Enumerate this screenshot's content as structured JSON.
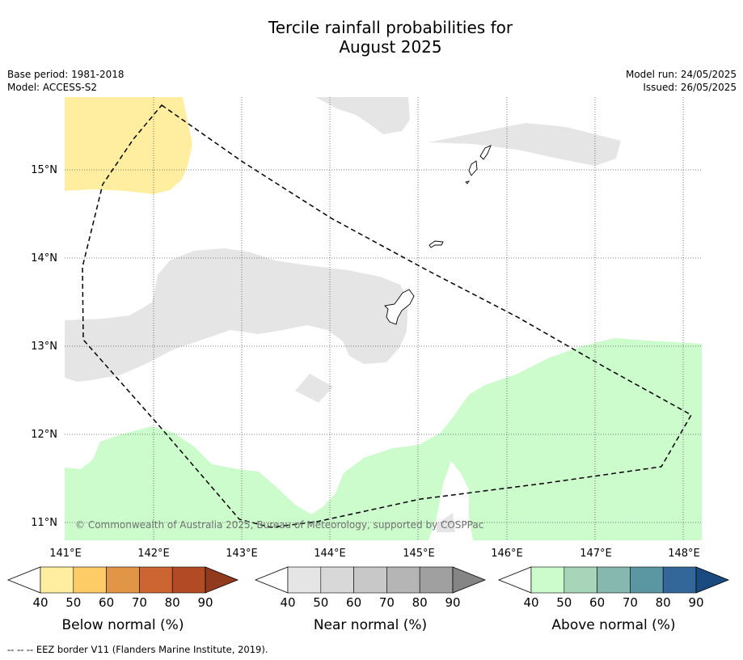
{
  "title_line1": "Tercile rainfall probabilities for",
  "title_line2": "August 2025",
  "meta": {
    "base_period": "Base period: 1981-2018",
    "model": "Model: ACCESS-S2",
    "model_run": "Model run: 24/05/2025",
    "issued": "Issued: 26/05/2025"
  },
  "map": {
    "lon_labels": [
      "141°E",
      "142°E",
      "143°E",
      "144°E",
      "145°E",
      "146°E",
      "147°E",
      "148°E"
    ],
    "lat_labels": [
      "15°N",
      "14°N",
      "13°N",
      "12°N",
      "11°N"
    ],
    "copyright": "© Commonwealth of Australia 2025, Bureau of Meteorology, supported by COSPPac",
    "colors": {
      "below_normal_fill": "#ffeda0",
      "near_normal_fill": "#e5e5e5",
      "above_normal_fill": "#ccfbcc",
      "eez_border": "#000000",
      "grid": "#555555"
    }
  },
  "legends": [
    {
      "title": "Below normal (%)",
      "ticks": [
        "40",
        "50",
        "60",
        "70",
        "80",
        "90"
      ],
      "colors": [
        "#ffeda0",
        "#fecc66",
        "#e09547",
        "#cd6533",
        "#b24a25",
        "#923a1e"
      ]
    },
    {
      "title": "Near normal (%)",
      "ticks": [
        "40",
        "50",
        "60",
        "70",
        "80",
        "90"
      ],
      "colors": [
        "#e5e5e5",
        "#d8d8d8",
        "#c8c8c8",
        "#b5b5b5",
        "#a0a0a0",
        "#858585"
      ]
    },
    {
      "title": "Above normal (%)",
      "ticks": [
        "40",
        "50",
        "60",
        "70",
        "80",
        "90"
      ],
      "colors": [
        "#ccfbcc",
        "#a8d5b9",
        "#86b8b0",
        "#5a97a3",
        "#336699",
        "#194a80"
      ]
    }
  ],
  "footnote": "--  --  -- EEZ border V11 (Flanders Marine Institute, 2019)."
}
